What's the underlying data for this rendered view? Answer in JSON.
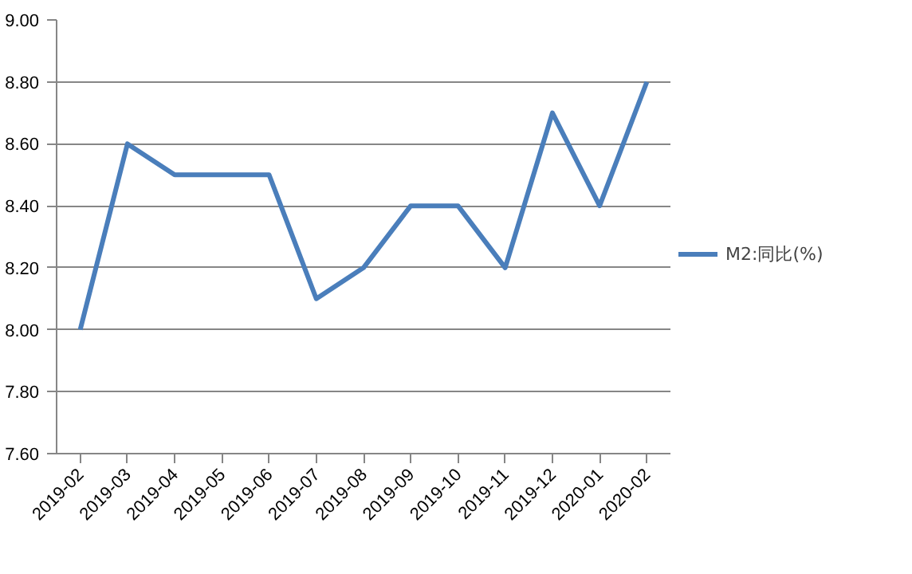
{
  "chart_data": {
    "type": "line",
    "categories": [
      "2019-02",
      "2019-03",
      "2019-04",
      "2019-05",
      "2019-06",
      "2019-07",
      "2019-08",
      "2019-09",
      "2019-10",
      "2019-11",
      "2019-12",
      "2020-01",
      "2020-02"
    ],
    "series": [
      {
        "name": "M2:同比(%)",
        "color": "#4a7ebb",
        "values": [
          8.0,
          8.6,
          8.5,
          8.5,
          8.5,
          8.1,
          8.2,
          8.4,
          8.4,
          8.2,
          8.7,
          8.4,
          8.8
        ]
      }
    ],
    "ylim": [
      7.6,
      9.0
    ],
    "yticks": [
      {
        "value": 7.6,
        "label": "7.60"
      },
      {
        "value": 7.8,
        "label": "7.80"
      },
      {
        "value": 8.0,
        "label": "8.00"
      },
      {
        "value": 8.2,
        "label": "8.20"
      },
      {
        "value": 8.4,
        "label": "8.40"
      },
      {
        "value": 8.6,
        "label": "8.60"
      },
      {
        "value": 8.8,
        "label": "8.80"
      },
      {
        "value": 9.0,
        "label": "9.00"
      }
    ],
    "grid": "y",
    "legend": "right",
    "marker": "none",
    "line_style": "solid"
  }
}
